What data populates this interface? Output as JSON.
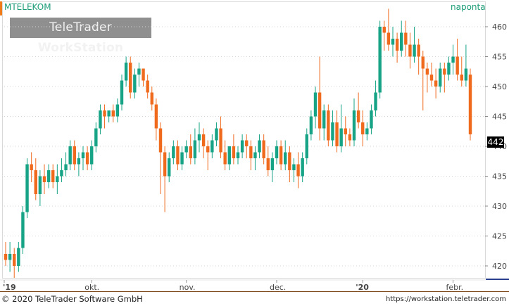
{
  "header": {
    "symbol": "MTELEKOM",
    "period": "naponta",
    "logo_regular": "TeleTrader ",
    "logo_bold": "WorkStation"
  },
  "footer": {
    "copyright": "© 2020  TeleTrader Software GmbH",
    "url": "https://workstation.teletrader.com"
  },
  "colors": {
    "up": "#16a386",
    "down": "#f06a1e",
    "grid": "#d6d6d6",
    "axis_accent": "#7a4a1a"
  },
  "chart_data": {
    "type": "candlestick",
    "title": "MTELEKOM",
    "y_range": [
      418,
      464
    ],
    "y_ticks": [
      420,
      425,
      430,
      435,
      440,
      445,
      450,
      455,
      460
    ],
    "x_tick_labels": [
      "'19",
      "okt.",
      "nov.",
      "dec.",
      "'20",
      "febr."
    ],
    "last_value": "442",
    "candles": [
      [
        422,
        424,
        420,
        421
      ],
      [
        421,
        424,
        419,
        422
      ],
      [
        422,
        423,
        418,
        420
      ],
      [
        420,
        424,
        419,
        423
      ],
      [
        423,
        430,
        422,
        429
      ],
      [
        429,
        438,
        428,
        437
      ],
      [
        437,
        439,
        434,
        436
      ],
      [
        436,
        438,
        431,
        432
      ],
      [
        432,
        436,
        430,
        435
      ],
      [
        435,
        437,
        432,
        434
      ],
      [
        434,
        437,
        433,
        436
      ],
      [
        436,
        437,
        433,
        434
      ],
      [
        434,
        437,
        432,
        435
      ],
      [
        435,
        438,
        434,
        436
      ],
      [
        436,
        439,
        435,
        437
      ],
      [
        437,
        441,
        436,
        440
      ],
      [
        440,
        441,
        436,
        437
      ],
      [
        437,
        439,
        435,
        438
      ],
      [
        438,
        440,
        436,
        439
      ],
      [
        439,
        440,
        436,
        437
      ],
      [
        437,
        441,
        436,
        440
      ],
      [
        440,
        444,
        439,
        443
      ],
      [
        443,
        447,
        442,
        446
      ],
      [
        446,
        447,
        443,
        445
      ],
      [
        445,
        446,
        444,
        446
      ],
      [
        446,
        447,
        444,
        445
      ],
      [
        445,
        448,
        444,
        447
      ],
      [
        447,
        452,
        446,
        451
      ],
      [
        451,
        455,
        450,
        454
      ],
      [
        454,
        455,
        448,
        449
      ],
      [
        449,
        453,
        448,
        452
      ],
      [
        452,
        454,
        450,
        453
      ],
      [
        453,
        453,
        450,
        451
      ],
      [
        451,
        452,
        448,
        449
      ],
      [
        449,
        450,
        446,
        447
      ],
      [
        447,
        448,
        441,
        443
      ],
      [
        443,
        444,
        432,
        439
      ],
      [
        439,
        440,
        429,
        435
      ],
      [
        435,
        439,
        434,
        438
      ],
      [
        438,
        441,
        437,
        440
      ],
      [
        440,
        441,
        436,
        437
      ],
      [
        437,
        440,
        436,
        439
      ],
      [
        439,
        441,
        438,
        440
      ],
      [
        440,
        442,
        437,
        438
      ],
      [
        438,
        443,
        437,
        441
      ],
      [
        441,
        444,
        439,
        442
      ],
      [
        442,
        443,
        438,
        440
      ],
      [
        440,
        441,
        436,
        439
      ],
      [
        439,
        442,
        438,
        441
      ],
      [
        441,
        444,
        440,
        443
      ],
      [
        443,
        445,
        438,
        439
      ],
      [
        439,
        441,
        436,
        437
      ],
      [
        437,
        440,
        436,
        440
      ],
      [
        440,
        442,
        437,
        438
      ],
      [
        438,
        440,
        437,
        439
      ],
      [
        439,
        442,
        438,
        441
      ],
      [
        441,
        442,
        438,
        440
      ],
      [
        440,
        441,
        436,
        438
      ],
      [
        438,
        440,
        436,
        439
      ],
      [
        439,
        442,
        438,
        441
      ],
      [
        441,
        442,
        437,
        438
      ],
      [
        438,
        440,
        435,
        436
      ],
      [
        436,
        439,
        434,
        438
      ],
      [
        438,
        441,
        437,
        440
      ],
      [
        440,
        441,
        436,
        437
      ],
      [
        437,
        441,
        436,
        439
      ],
      [
        439,
        440,
        434,
        436
      ],
      [
        436,
        438,
        434,
        437
      ],
      [
        437,
        439,
        433,
        435
      ],
      [
        435,
        439,
        434,
        438
      ],
      [
        438,
        443,
        437,
        442
      ],
      [
        442,
        446,
        441,
        445
      ],
      [
        445,
        450,
        443,
        449
      ],
      [
        449,
        455,
        441,
        443
      ],
      [
        443,
        447,
        441,
        446
      ],
      [
        446,
        447,
        440,
        441
      ],
      [
        441,
        446,
        440,
        444
      ],
      [
        444,
        446,
        439,
        440
      ],
      [
        440,
        447,
        439,
        443
      ],
      [
        443,
        445,
        440,
        442
      ],
      [
        442,
        443,
        440,
        441
      ],
      [
        441,
        448,
        440,
        446
      ],
      [
        446,
        449,
        443,
        444
      ],
      [
        444,
        446,
        440,
        442
      ],
      [
        442,
        444,
        441,
        443
      ],
      [
        443,
        447,
        442,
        446
      ],
      [
        446,
        451,
        445,
        449
      ],
      [
        449,
        461,
        448,
        460
      ],
      [
        460,
        461,
        456,
        459
      ],
      [
        459,
        463,
        456,
        457
      ],
      [
        457,
        460,
        455,
        458
      ],
      [
        458,
        459,
        454,
        456
      ],
      [
        456,
        461,
        455,
        459
      ],
      [
        459,
        461,
        455,
        457
      ],
      [
        457,
        459,
        453,
        455
      ],
      [
        455,
        460,
        454,
        457
      ],
      [
        457,
        458,
        452,
        455
      ],
      [
        455,
        456,
        446,
        453
      ],
      [
        453,
        454,
        449,
        452
      ],
      [
        452,
        454,
        450,
        451
      ],
      [
        451,
        453,
        448,
        450
      ],
      [
        450,
        454,
        449,
        453
      ],
      [
        453,
        454,
        449,
        452
      ],
      [
        452,
        455,
        451,
        454
      ],
      [
        454,
        457,
        452,
        455
      ],
      [
        455,
        458,
        451,
        452
      ],
      [
        452,
        455,
        450,
        451
      ],
      [
        451,
        457,
        450,
        453
      ],
      [
        452,
        453,
        441,
        442
      ]
    ]
  }
}
